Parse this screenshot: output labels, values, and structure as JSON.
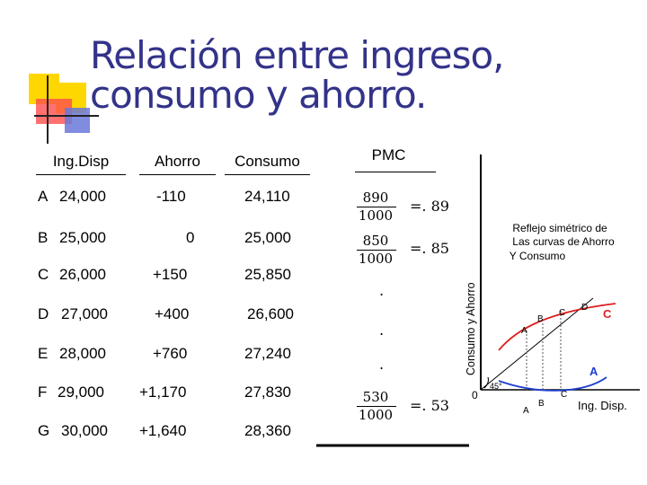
{
  "title": {
    "line1": "Relación entre ingreso,",
    "line2": "consumo y ahorro."
  },
  "table": {
    "headers": {
      "ing": "Ing.Disp",
      "ahorro": "Ahorro",
      "consumo": "Consumo",
      "pmc": "PMC"
    },
    "rows": [
      {
        "label": "A",
        "ing": "24,000",
        "ahorro": "-110",
        "consumo": "24,110"
      },
      {
        "label": "B",
        "ing": "25,000",
        "ahorro": "0",
        "consumo": "25,000"
      },
      {
        "label": "C",
        "ing": "26,000",
        "ahorro": "+150",
        "consumo": "25,850"
      },
      {
        "label": "D",
        "ing": "27,000",
        "ahorro": "+400",
        "consumo": "26,600"
      },
      {
        "label": "E",
        "ing": "28,000",
        "ahorro": "+760",
        "consumo": "27,240"
      },
      {
        "label": "F",
        "ing": "29,000",
        "ahorro": "+1,170",
        "consumo": "27,830"
      },
      {
        "label": "G",
        "ing": "30,000",
        "ahorro": "+1,640",
        "consumo": "28,360"
      }
    ],
    "pmc": {
      "f1": {
        "num": "890",
        "den": "1000",
        "result": "=. 89"
      },
      "f2": {
        "num": "850",
        "den": "1000",
        "result": "=. 85"
      },
      "dot": ".",
      "f3": {
        "num": "530",
        "den": "1000",
        "result": "=. 53"
      }
    }
  },
  "graph": {
    "ylabel": "Consumo y Ahorro",
    "xlabel": "Ing. Disp.",
    "origin": "0",
    "note": [
      "Reflejo simétrico de",
      "Las curvas de Ahorro",
      "Y Consumo"
    ],
    "angle": "45°",
    "curve_labels": {
      "consumo_curve": "C",
      "ahorro_curve": "A"
    },
    "points": {
      "a": "A",
      "b": "B",
      "c": "C",
      "d": "D"
    },
    "colors": {
      "consumo": "#e02020",
      "ahorro": "#1f3fd0",
      "bisector": "#000000",
      "deco_yellow": "#ffd700",
      "deco_blue": "#3a4fc8",
      "deco_red": "#ff3b3b",
      "title": "#33338a"
    }
  }
}
